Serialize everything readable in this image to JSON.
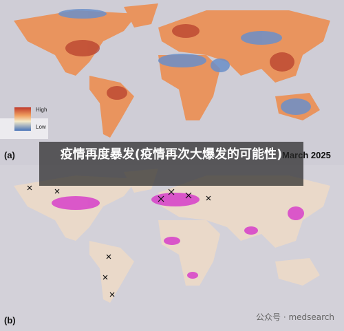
{
  "panel_a": {
    "label": "(a)",
    "legend": {
      "high": "High",
      "low": "Low"
    },
    "date": "March 2025"
  },
  "panel_b": {
    "label": "(b)"
  },
  "overlay": {
    "title": "疫情再度暴发(疫情再次大爆发的可能性)"
  },
  "watermark": "公众号 · medsearch"
}
